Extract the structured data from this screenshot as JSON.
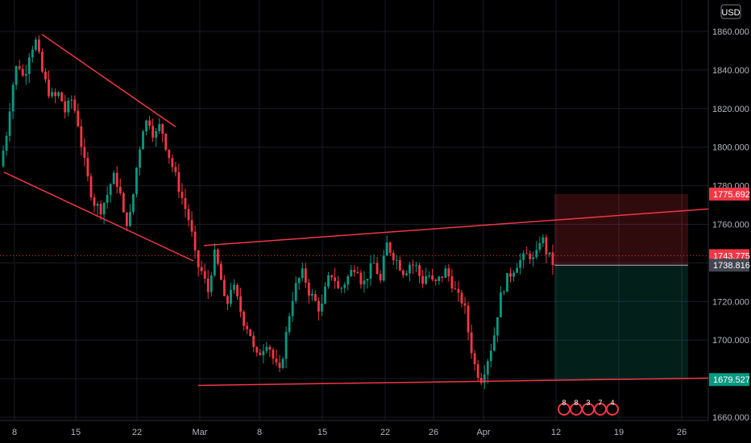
{
  "chart_data": {
    "type": "candlestick",
    "currency": "USD",
    "y_axis": {
      "min": 1660,
      "max": 1870,
      "ticks": [
        "1660.000",
        "1680.000",
        "1700.000",
        "1720.000",
        "1740.000",
        "1760.000",
        "1780.000",
        "1800.000",
        "1820.000",
        "1840.000",
        "1860.000"
      ]
    },
    "x_axis": {
      "ticks": [
        "8",
        "15",
        "22",
        "Mar",
        "8",
        "15",
        "22",
        "26",
        "Apr",
        "12",
        "19",
        "26"
      ]
    },
    "price_labels": [
      {
        "text": "1775.692",
        "value": 1775.692,
        "color": "#f23645"
      },
      {
        "text": "1743.775",
        "value": 1743.775,
        "color": "#f23645"
      },
      {
        "text": "1738.816",
        "value": 1738.816,
        "color": "#434651"
      },
      {
        "text": "1679.527",
        "value": 1679.527,
        "color": "#089981"
      }
    ],
    "position_tool": {
      "entry": 1738.816,
      "stop": 1775.692,
      "target": 1679.527
    },
    "trendlines": [
      {
        "name": "falling-wedge-upper",
        "from": [
          0.0,
          1858.5
        ],
        "to": [
          1.0,
          1810.5
        ]
      },
      {
        "name": "falling-wedge-lower",
        "from": [
          0.0,
          1787.0
        ],
        "to": [
          1.0,
          1741.0
        ]
      },
      {
        "name": "channel-upper",
        "from": [
          0.0,
          1749.0
        ],
        "to": [
          1.0,
          1768.0
        ]
      },
      {
        "name": "channel-lower",
        "from": [
          0.0,
          1676.5
        ],
        "to": [
          1.0,
          1680.3
        ]
      }
    ],
    "price_path": [
      1790,
      1805,
      1830,
      1845,
      1835,
      1850,
      1855,
      1840,
      1830,
      1825,
      1828,
      1818,
      1825,
      1815,
      1795,
      1780,
      1770,
      1768,
      1775,
      1785,
      1780,
      1760,
      1765,
      1790,
      1810,
      1815,
      1805,
      1812,
      1800,
      1790,
      1780,
      1770,
      1760,
      1740,
      1735,
      1725,
      1745,
      1735,
      1715,
      1730,
      1720,
      1710,
      1705,
      1690,
      1695,
      1700,
      1690,
      1682,
      1700,
      1720,
      1730,
      1735,
      1725,
      1720,
      1715,
      1730,
      1735,
      1725,
      1730,
      1735,
      1740,
      1728,
      1735,
      1740,
      1730,
      1750,
      1745,
      1740,
      1735,
      1740,
      1738,
      1730,
      1735,
      1728,
      1732,
      1736,
      1730,
      1722,
      1720,
      1700,
      1685,
      1680,
      1690,
      1700,
      1720,
      1730,
      1735,
      1740,
      1742,
      1745,
      1740,
      1755,
      1745,
      1740
    ]
  },
  "event_badges": [
    "8",
    "8",
    "3",
    "7",
    "4"
  ]
}
